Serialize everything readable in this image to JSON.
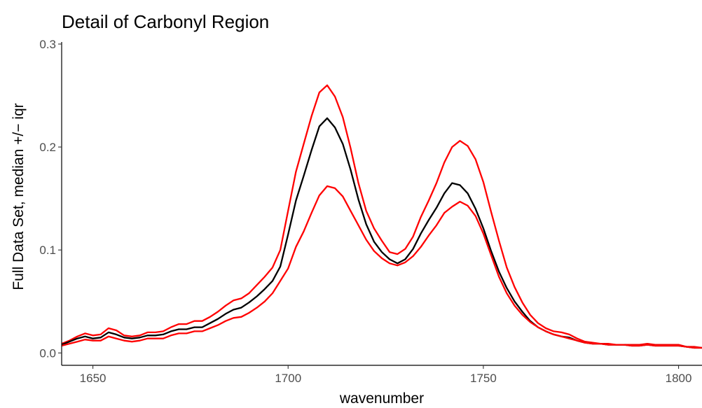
{
  "chart_data": {
    "type": "line",
    "title": "Detail of Carbonyl Region",
    "xlabel": "wavenumber",
    "ylabel": "Full Data Set, median +/− iqr",
    "xlim": [
      1642,
      1806
    ],
    "ylim": [
      -0.012,
      0.302
    ],
    "x_ticks": [
      1650,
      1700,
      1750,
      1800
    ],
    "y_ticks": [
      0.0,
      0.1,
      0.2,
      0.3
    ],
    "x_tick_labels": [
      "1650",
      "1700",
      "1750",
      "1800"
    ],
    "y_tick_labels": [
      "0.0",
      "0.1",
      "0.2",
      "0.3"
    ],
    "grid": false,
    "legend": "none",
    "x": [
      1642,
      1644,
      1646,
      1648,
      1650,
      1652,
      1654,
      1656,
      1658,
      1660,
      1662,
      1664,
      1666,
      1668,
      1670,
      1672,
      1674,
      1676,
      1678,
      1680,
      1682,
      1684,
      1686,
      1688,
      1690,
      1692,
      1694,
      1696,
      1698,
      1700,
      1702,
      1704,
      1706,
      1708,
      1710,
      1712,
      1714,
      1716,
      1718,
      1720,
      1722,
      1724,
      1726,
      1728,
      1730,
      1732,
      1734,
      1736,
      1738,
      1740,
      1742,
      1744,
      1746,
      1748,
      1750,
      1752,
      1754,
      1756,
      1758,
      1760,
      1762,
      1764,
      1766,
      1768,
      1770,
      1772,
      1774,
      1776,
      1778,
      1780,
      1782,
      1784,
      1786,
      1788,
      1790,
      1792,
      1794,
      1796,
      1798,
      1800,
      1802,
      1804,
      1806
    ],
    "series": [
      {
        "color": "#ff0000",
        "values": [
          0.009,
          0.012,
          0.016,
          0.019,
          0.017,
          0.018,
          0.024,
          0.022,
          0.017,
          0.016,
          0.017,
          0.02,
          0.02,
          0.021,
          0.025,
          0.028,
          0.028,
          0.031,
          0.031,
          0.035,
          0.04,
          0.046,
          0.051,
          0.053,
          0.058,
          0.066,
          0.074,
          0.083,
          0.1,
          0.138,
          0.176,
          0.203,
          0.23,
          0.253,
          0.26,
          0.249,
          0.229,
          0.199,
          0.165,
          0.138,
          0.121,
          0.109,
          0.098,
          0.096,
          0.101,
          0.113,
          0.132,
          0.148,
          0.165,
          0.185,
          0.2,
          0.206,
          0.201,
          0.188,
          0.166,
          0.137,
          0.109,
          0.083,
          0.064,
          0.049,
          0.037,
          0.029,
          0.024,
          0.021,
          0.02,
          0.018,
          0.014,
          0.011,
          0.01,
          0.009,
          0.009,
          0.008,
          0.008,
          0.008,
          0.008,
          0.009,
          0.008,
          0.008,
          0.008,
          0.008,
          0.006,
          0.006,
          0.005
        ]
      },
      {
        "color": "#000000",
        "values": [
          0.008,
          0.011,
          0.014,
          0.016,
          0.014,
          0.015,
          0.02,
          0.018,
          0.015,
          0.014,
          0.015,
          0.017,
          0.017,
          0.018,
          0.021,
          0.023,
          0.023,
          0.025,
          0.025,
          0.029,
          0.033,
          0.038,
          0.042,
          0.044,
          0.049,
          0.055,
          0.062,
          0.07,
          0.084,
          0.115,
          0.148,
          0.172,
          0.197,
          0.22,
          0.228,
          0.219,
          0.203,
          0.178,
          0.149,
          0.125,
          0.108,
          0.098,
          0.091,
          0.087,
          0.091,
          0.101,
          0.116,
          0.129,
          0.141,
          0.155,
          0.165,
          0.163,
          0.155,
          0.14,
          0.121,
          0.099,
          0.079,
          0.063,
          0.05,
          0.04,
          0.031,
          0.025,
          0.021,
          0.018,
          0.016,
          0.015,
          0.012,
          0.01,
          0.009,
          0.009,
          0.008,
          0.008,
          0.008,
          0.007,
          0.007,
          0.008,
          0.007,
          0.007,
          0.007,
          0.007,
          0.006,
          0.005,
          0.005
        ]
      },
      {
        "color": "#ff0000",
        "values": [
          0.007,
          0.009,
          0.011,
          0.013,
          0.012,
          0.012,
          0.016,
          0.014,
          0.012,
          0.011,
          0.012,
          0.014,
          0.014,
          0.014,
          0.017,
          0.019,
          0.019,
          0.021,
          0.021,
          0.024,
          0.027,
          0.031,
          0.034,
          0.035,
          0.039,
          0.044,
          0.05,
          0.058,
          0.07,
          0.082,
          0.103,
          0.118,
          0.136,
          0.153,
          0.162,
          0.16,
          0.152,
          0.138,
          0.124,
          0.11,
          0.099,
          0.092,
          0.087,
          0.085,
          0.088,
          0.094,
          0.103,
          0.114,
          0.124,
          0.136,
          0.142,
          0.147,
          0.143,
          0.133,
          0.116,
          0.095,
          0.074,
          0.058,
          0.046,
          0.037,
          0.03,
          0.025,
          0.021,
          0.018,
          0.016,
          0.014,
          0.012,
          0.01,
          0.009,
          0.009,
          0.008,
          0.008,
          0.008,
          0.007,
          0.007,
          0.008,
          0.007,
          0.007,
          0.007,
          0.007,
          0.006,
          0.005,
          0.005
        ]
      }
    ]
  }
}
